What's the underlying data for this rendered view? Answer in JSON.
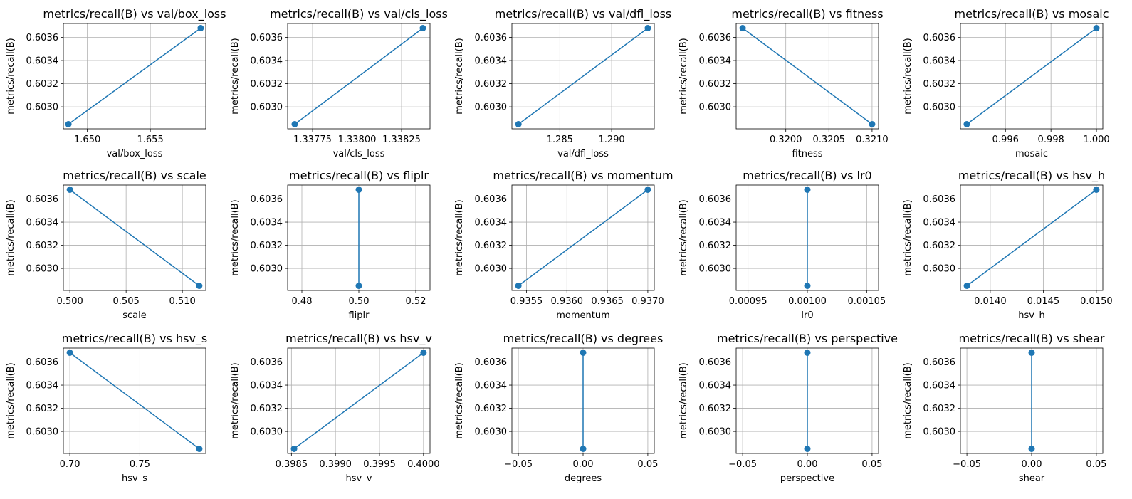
{
  "chart_data": [
    {
      "type": "line",
      "title": "metrics/recall(B) vs val/box_loss",
      "xlabel": "val/box_loss",
      "ylabel": "metrics/recall(B)",
      "x": [
        1.6485,
        1.659
      ],
      "y": [
        0.60285,
        0.60368
      ],
      "xlim": [
        1.6481,
        1.6594
      ],
      "ylim": [
        0.60281,
        0.60372
      ],
      "xticks": [
        1.65,
        1.655
      ],
      "xtick_labels": [
        "1.650",
        "1.655"
      ],
      "yticks": [
        0.603,
        0.6032,
        0.6034,
        0.6036
      ],
      "ytick_labels": [
        "0.6030",
        "0.6032",
        "0.6034",
        "0.6036"
      ]
    },
    {
      "type": "line",
      "title": "metrics/recall(B) vs val/cls_loss",
      "xlabel": "val/cls_loss",
      "ylabel": "metrics/recall(B)",
      "x": [
        1.33765,
        1.33837
      ],
      "y": [
        0.60285,
        0.60368
      ],
      "xlim": [
        1.33761,
        1.33841
      ],
      "ylim": [
        0.60281,
        0.60372
      ],
      "xticks": [
        1.33775,
        1.338,
        1.33825
      ],
      "xtick_labels": [
        "1.33775",
        "1.33800",
        "1.33825"
      ],
      "yticks": [
        0.603,
        0.6032,
        0.6034,
        0.6036
      ],
      "ytick_labels": [
        "0.6030",
        "0.6032",
        "0.6034",
        "0.6036"
      ]
    },
    {
      "type": "line",
      "title": "metrics/recall(B) vs val/dfl_loss",
      "xlabel": "val/dfl_loss",
      "ylabel": "metrics/recall(B)",
      "x": [
        1.281,
        1.2935
      ],
      "y": [
        0.60285,
        0.60368
      ],
      "xlim": [
        1.28037,
        1.29412
      ],
      "ylim": [
        0.60281,
        0.60372
      ],
      "xticks": [
        1.285,
        1.29
      ],
      "xtick_labels": [
        "1.285",
        "1.290"
      ],
      "yticks": [
        0.603,
        0.6032,
        0.6034,
        0.6036
      ],
      "ytick_labels": [
        "0.6030",
        "0.6032",
        "0.6034",
        "0.6036"
      ]
    },
    {
      "type": "line",
      "title": "metrics/recall(B) vs fitness",
      "xlabel": "fitness",
      "ylabel": "metrics/recall(B)",
      "x": [
        0.3195,
        0.321
      ],
      "y": [
        0.60368,
        0.60285
      ],
      "xlim": [
        0.319425,
        0.321075
      ],
      "ylim": [
        0.60281,
        0.60372
      ],
      "xticks": [
        0.32,
        0.3205,
        0.321
      ],
      "xtick_labels": [
        "0.3200",
        "0.3205",
        "0.3210"
      ],
      "yticks": [
        0.603,
        0.6032,
        0.6034,
        0.6036
      ],
      "ytick_labels": [
        "0.6030",
        "0.6032",
        "0.6034",
        "0.6036"
      ]
    },
    {
      "type": "line",
      "title": "metrics/recall(B) vs mosaic",
      "xlabel": "mosaic",
      "ylabel": "metrics/recall(B)",
      "x": [
        0.9943,
        1.0
      ],
      "y": [
        0.60285,
        0.60368
      ],
      "xlim": [
        0.99402,
        1.00028
      ],
      "ylim": [
        0.60281,
        0.60372
      ],
      "xticks": [
        0.996,
        0.998,
        1.0
      ],
      "xtick_labels": [
        "0.996",
        "0.998",
        "1.000"
      ],
      "yticks": [
        0.603,
        0.6032,
        0.6034,
        0.6036
      ],
      "ytick_labels": [
        "0.6030",
        "0.6032",
        "0.6034",
        "0.6036"
      ]
    },
    {
      "type": "line",
      "title": "metrics/recall(B) vs scale",
      "xlabel": "scale",
      "ylabel": "metrics/recall(B)",
      "x": [
        0.5,
        0.5115
      ],
      "y": [
        0.60368,
        0.60285
      ],
      "xlim": [
        0.49942,
        0.51208
      ],
      "ylim": [
        0.60281,
        0.60372
      ],
      "xticks": [
        0.5,
        0.505,
        0.51
      ],
      "xtick_labels": [
        "0.500",
        "0.505",
        "0.510"
      ],
      "yticks": [
        0.603,
        0.6032,
        0.6034,
        0.6036
      ],
      "ytick_labels": [
        "0.6030",
        "0.6032",
        "0.6034",
        "0.6036"
      ]
    },
    {
      "type": "line",
      "title": "metrics/recall(B) vs fliplr",
      "xlabel": "fliplr",
      "ylabel": "metrics/recall(B)",
      "x": [
        0.5,
        0.5
      ],
      "y": [
        0.60368,
        0.60285
      ],
      "xlim": [
        0.475,
        0.525
      ],
      "ylim": [
        0.60281,
        0.60372
      ],
      "xticks": [
        0.48,
        0.5,
        0.52
      ],
      "xtick_labels": [
        "0.48",
        "0.50",
        "0.52"
      ],
      "yticks": [
        0.603,
        0.6032,
        0.6034,
        0.6036
      ],
      "ytick_labels": [
        "0.6030",
        "0.6032",
        "0.6034",
        "0.6036"
      ]
    },
    {
      "type": "line",
      "title": "metrics/recall(B) vs momentum",
      "xlabel": "momentum",
      "ylabel": "metrics/recall(B)",
      "x": [
        0.9354,
        0.937
      ],
      "y": [
        0.60285,
        0.60368
      ],
      "xlim": [
        0.93532,
        0.93708
      ],
      "ylim": [
        0.60281,
        0.60372
      ],
      "xticks": [
        0.9355,
        0.936,
        0.9365,
        0.937
      ],
      "xtick_labels": [
        "0.9355",
        "0.9360",
        "0.9365",
        "0.9370"
      ],
      "yticks": [
        0.603,
        0.6032,
        0.6034,
        0.6036
      ],
      "ytick_labels": [
        "0.6030",
        "0.6032",
        "0.6034",
        "0.6036"
      ]
    },
    {
      "type": "line",
      "title": "metrics/recall(B) vs lr0",
      "xlabel": "lr0",
      "ylabel": "metrics/recall(B)",
      "x": [
        0.001,
        0.001
      ],
      "y": [
        0.60368,
        0.60285
      ],
      "xlim": [
        0.00094,
        0.00106
      ],
      "ylim": [
        0.60281,
        0.60372
      ],
      "xticks": [
        0.00095,
        0.001,
        0.00105
      ],
      "xtick_labels": [
        "0.00095",
        "0.00100",
        "0.00105"
      ],
      "yticks": [
        0.603,
        0.6032,
        0.6034,
        0.6036
      ],
      "ytick_labels": [
        "0.6030",
        "0.6032",
        "0.6034",
        "0.6036"
      ]
    },
    {
      "type": "line",
      "title": "metrics/recall(B) vs hsv_h",
      "xlabel": "hsv_h",
      "ylabel": "metrics/recall(B)",
      "x": [
        0.01378,
        0.015
      ],
      "y": [
        0.60285,
        0.60368
      ],
      "xlim": [
        0.013719,
        0.015061
      ],
      "ylim": [
        0.60281,
        0.60372
      ],
      "xticks": [
        0.014,
        0.0145,
        0.015
      ],
      "xtick_labels": [
        "0.0140",
        "0.0145",
        "0.0150"
      ],
      "yticks": [
        0.603,
        0.6032,
        0.6034,
        0.6036
      ],
      "ytick_labels": [
        "0.6030",
        "0.6032",
        "0.6034",
        "0.6036"
      ]
    },
    {
      "type": "line",
      "title": "metrics/recall(B) vs hsv_s",
      "xlabel": "hsv_s",
      "ylabel": "metrics/recall(B)",
      "x": [
        0.7,
        0.7925
      ],
      "y": [
        0.60368,
        0.60285
      ],
      "xlim": [
        0.695375,
        0.797125
      ],
      "ylim": [
        0.60281,
        0.60372
      ],
      "xticks": [
        0.7,
        0.75
      ],
      "xtick_labels": [
        "0.70",
        "0.75"
      ],
      "yticks": [
        0.603,
        0.6032,
        0.6034,
        0.6036
      ],
      "ytick_labels": [
        "0.6030",
        "0.6032",
        "0.6034",
        "0.6036"
      ]
    },
    {
      "type": "line",
      "title": "metrics/recall(B) vs hsv_v",
      "xlabel": "hsv_v",
      "ylabel": "metrics/recall(B)",
      "x": [
        0.39853,
        0.4
      ],
      "y": [
        0.60285,
        0.60368
      ],
      "xlim": [
        0.398457,
        0.400074
      ],
      "ylim": [
        0.60281,
        0.60372
      ],
      "xticks": [
        0.3985,
        0.399,
        0.3995,
        0.4
      ],
      "xtick_labels": [
        "0.3985",
        "0.3990",
        "0.3995",
        "0.4000"
      ],
      "yticks": [
        0.603,
        0.6032,
        0.6034,
        0.6036
      ],
      "ytick_labels": [
        "0.6030",
        "0.6032",
        "0.6034",
        "0.6036"
      ]
    },
    {
      "type": "line",
      "title": "metrics/recall(B) vs degrees",
      "xlabel": "degrees",
      "ylabel": "metrics/recall(B)",
      "x": [
        0,
        0
      ],
      "y": [
        0.60368,
        0.60285
      ],
      "xlim": [
        -0.055,
        0.055
      ],
      "ylim": [
        0.60281,
        0.60372
      ],
      "xticks": [
        -0.05,
        0.0,
        0.05
      ],
      "xtick_labels": [
        "−0.05",
        "0.00",
        "0.05"
      ],
      "yticks": [
        0.603,
        0.6032,
        0.6034,
        0.6036
      ],
      "ytick_labels": [
        "0.6030",
        "0.6032",
        "0.6034",
        "0.6036"
      ]
    },
    {
      "type": "line",
      "title": "metrics/recall(B) vs perspective",
      "xlabel": "perspective",
      "ylabel": "metrics/recall(B)",
      "x": [
        0,
        0
      ],
      "y": [
        0.60368,
        0.60285
      ],
      "xlim": [
        -0.055,
        0.055
      ],
      "ylim": [
        0.60281,
        0.60372
      ],
      "xticks": [
        -0.05,
        0.0,
        0.05
      ],
      "xtick_labels": [
        "−0.05",
        "0.00",
        "0.05"
      ],
      "yticks": [
        0.603,
        0.6032,
        0.6034,
        0.6036
      ],
      "ytick_labels": [
        "0.6030",
        "0.6032",
        "0.6034",
        "0.6036"
      ]
    },
    {
      "type": "line",
      "title": "metrics/recall(B) vs shear",
      "xlabel": "shear",
      "ylabel": "metrics/recall(B)",
      "x": [
        0,
        0
      ],
      "y": [
        0.60368,
        0.60285
      ],
      "xlim": [
        -0.055,
        0.055
      ],
      "ylim": [
        0.60281,
        0.60372
      ],
      "xticks": [
        -0.05,
        0.0,
        0.05
      ],
      "xtick_labels": [
        "−0.05",
        "0.00",
        "0.05"
      ],
      "yticks": [
        0.603,
        0.6032,
        0.6034,
        0.6036
      ],
      "ytick_labels": [
        "0.6030",
        "0.6032",
        "0.6034",
        "0.6036"
      ]
    }
  ],
  "style": {
    "series_color": "#1f77b4",
    "grid": true,
    "grid_color": "#b0b0b0"
  }
}
